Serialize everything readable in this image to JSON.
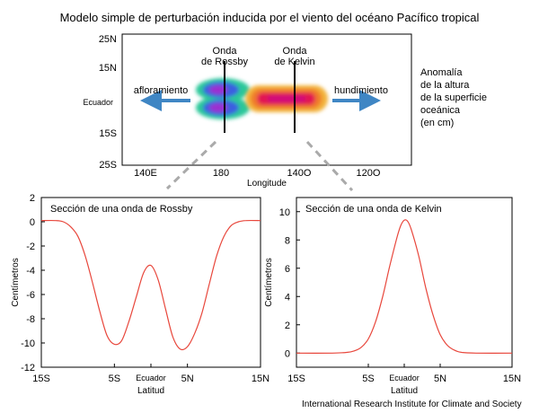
{
  "title": "Modelo simple de perturbación inducida por el viento del océano Pacífico tropical",
  "credit": "International Research Institute for Climate and Society",
  "colors": {
    "curve": "#e8473c",
    "arrow": "#3f86c4",
    "frame": "#000000",
    "connector": "#aaaaaa"
  },
  "map": {
    "y_ticks": [
      "25N",
      "15N",
      "Ecuador",
      "15S",
      "25S"
    ],
    "x_ticks": [
      "140E",
      "180",
      "140O",
      "120O"
    ],
    "xlabel": "Longitude",
    "wave_labels": {
      "rossby": "Onda de Rossby",
      "kelvin": "Onda de Kelvin"
    },
    "upwelling": "afloramiento",
    "downwelling": "hundimiento",
    "legend_lines": [
      "Anomalía",
      "de la altura",
      "de la superficie",
      "oceánica",
      "(en cm)"
    ]
  },
  "chart_data": [
    {
      "type": "line",
      "title": "Sección de una onda de Rossby",
      "xlabel": "Latitud",
      "ylabel": "Centímetros",
      "xlim": [
        -15,
        15
      ],
      "ylim": [
        -12,
        2
      ],
      "x_tick_values": [
        -15,
        -5,
        0,
        5,
        15
      ],
      "x_tick_labels": [
        "15S",
        "5S",
        "Ecuador",
        "5N",
        "15N"
      ],
      "y_tick_values": [
        2,
        0,
        -2,
        -4,
        -6,
        -8,
        -10,
        -12
      ],
      "y_tick_labels": [
        "2",
        "0",
        "-2",
        "-4",
        "-6",
        "-8",
        "-10",
        "-12"
      ],
      "x": [
        -15,
        -13,
        -12,
        -11,
        -10,
        -9,
        -8,
        -7,
        -6,
        -5,
        -4,
        -3,
        -2,
        -1,
        0,
        1,
        2,
        3,
        4,
        5,
        6,
        7,
        8,
        9,
        10,
        11,
        12,
        13,
        15
      ],
      "y": [
        0.1,
        0.1,
        0,
        -0.4,
        -1.2,
        -2.8,
        -5,
        -7.4,
        -9.4,
        -10.1,
        -9.8,
        -8.2,
        -6.2,
        -4.2,
        -3.6,
        -4.8,
        -7.2,
        -9.5,
        -10.5,
        -10.3,
        -9.2,
        -7.5,
        -5.1,
        -2.8,
        -1.2,
        -0.3,
        0,
        0.1,
        0.1
      ]
    },
    {
      "type": "line",
      "title": "Sección de una onda de Kelvin",
      "xlabel": "Latitud",
      "ylabel": "Centímetros",
      "xlim": [
        -15,
        15
      ],
      "ylim": [
        -1,
        11
      ],
      "x_tick_values": [
        -15,
        -5,
        0,
        5,
        15
      ],
      "x_tick_labels": [
        "15S",
        "5S",
        "Ecuador",
        "5N",
        "15N"
      ],
      "y_tick_values": [
        10,
        8,
        6,
        4,
        2,
        0
      ],
      "y_tick_labels": [
        "10",
        "8",
        "6",
        "4",
        "2",
        "0"
      ],
      "x": [
        -15,
        -10,
        -8,
        -7,
        -6,
        -5,
        -4,
        -3,
        -2,
        -1,
        -0.5,
        0,
        0.5,
        1,
        2,
        3,
        4,
        5,
        6,
        7,
        8,
        10,
        15
      ],
      "y": [
        0,
        0,
        0.05,
        0.15,
        0.4,
        1.0,
        2.2,
        4.0,
        6.2,
        8.2,
        9.0,
        9.4,
        9.3,
        8.7,
        6.9,
        4.6,
        2.7,
        1.3,
        0.55,
        0.2,
        0.05,
        0,
        0
      ]
    }
  ]
}
